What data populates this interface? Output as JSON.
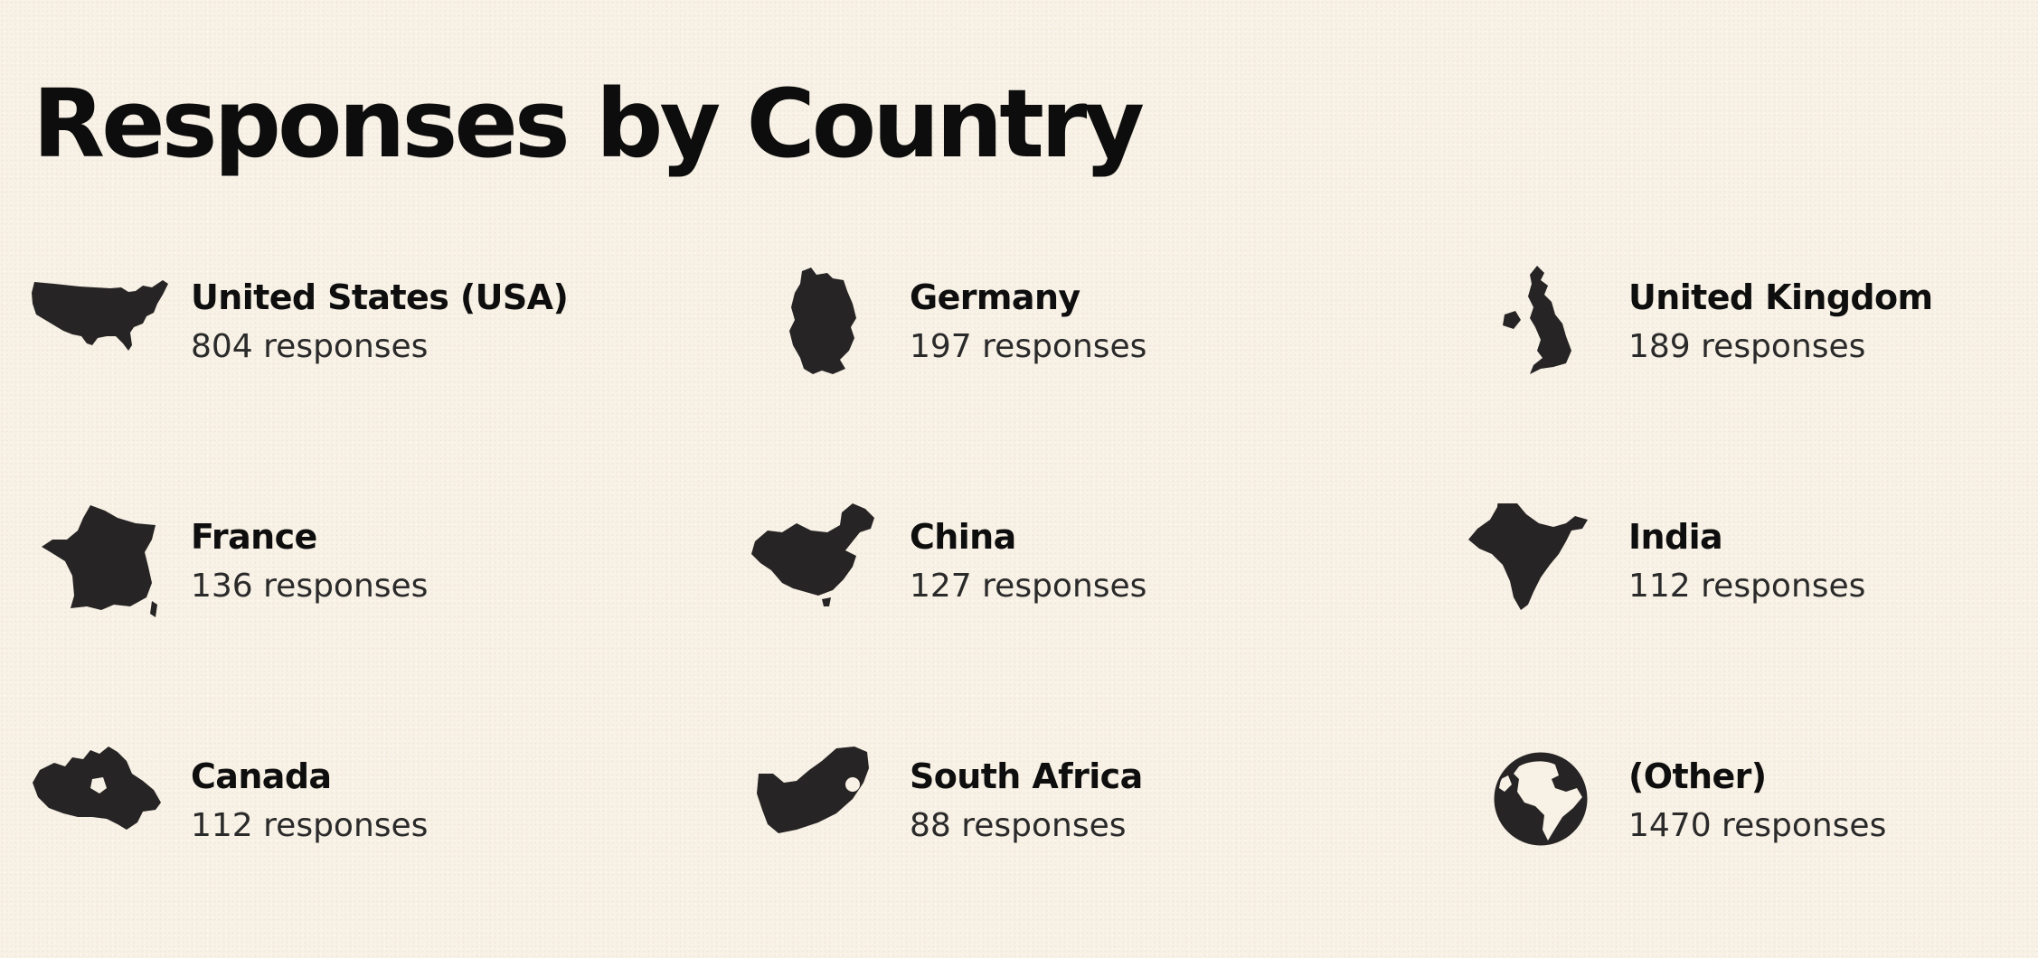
{
  "page": {
    "title": "Responses by Country"
  },
  "countries": [
    {
      "name": "United States (USA)",
      "responses": "804 responses",
      "icon": "usa-map-icon"
    },
    {
      "name": "Germany",
      "responses": "197 responses",
      "icon": "germany-map-icon"
    },
    {
      "name": "United Kingdom",
      "responses": "189 responses",
      "icon": "uk-map-icon"
    },
    {
      "name": "France",
      "responses": "136 responses",
      "icon": "france-map-icon"
    },
    {
      "name": "China",
      "responses": "127 responses",
      "icon": "china-map-icon"
    },
    {
      "name": "India",
      "responses": "112 responses",
      "icon": "india-map-icon"
    },
    {
      "name": "Canada",
      "responses": "112 responses",
      "icon": "canada-map-icon"
    },
    {
      "name": "South Africa",
      "responses": "88 responses",
      "icon": "south-africa-map-icon"
    },
    {
      "name": "(Other)",
      "responses": "1470 responses",
      "icon": "globe-icon"
    }
  ],
  "colors": {
    "background": "#f8f1e5",
    "silhouette": "#262424",
    "title": "#0d0d0d",
    "count_text": "#2a2a2a"
  }
}
